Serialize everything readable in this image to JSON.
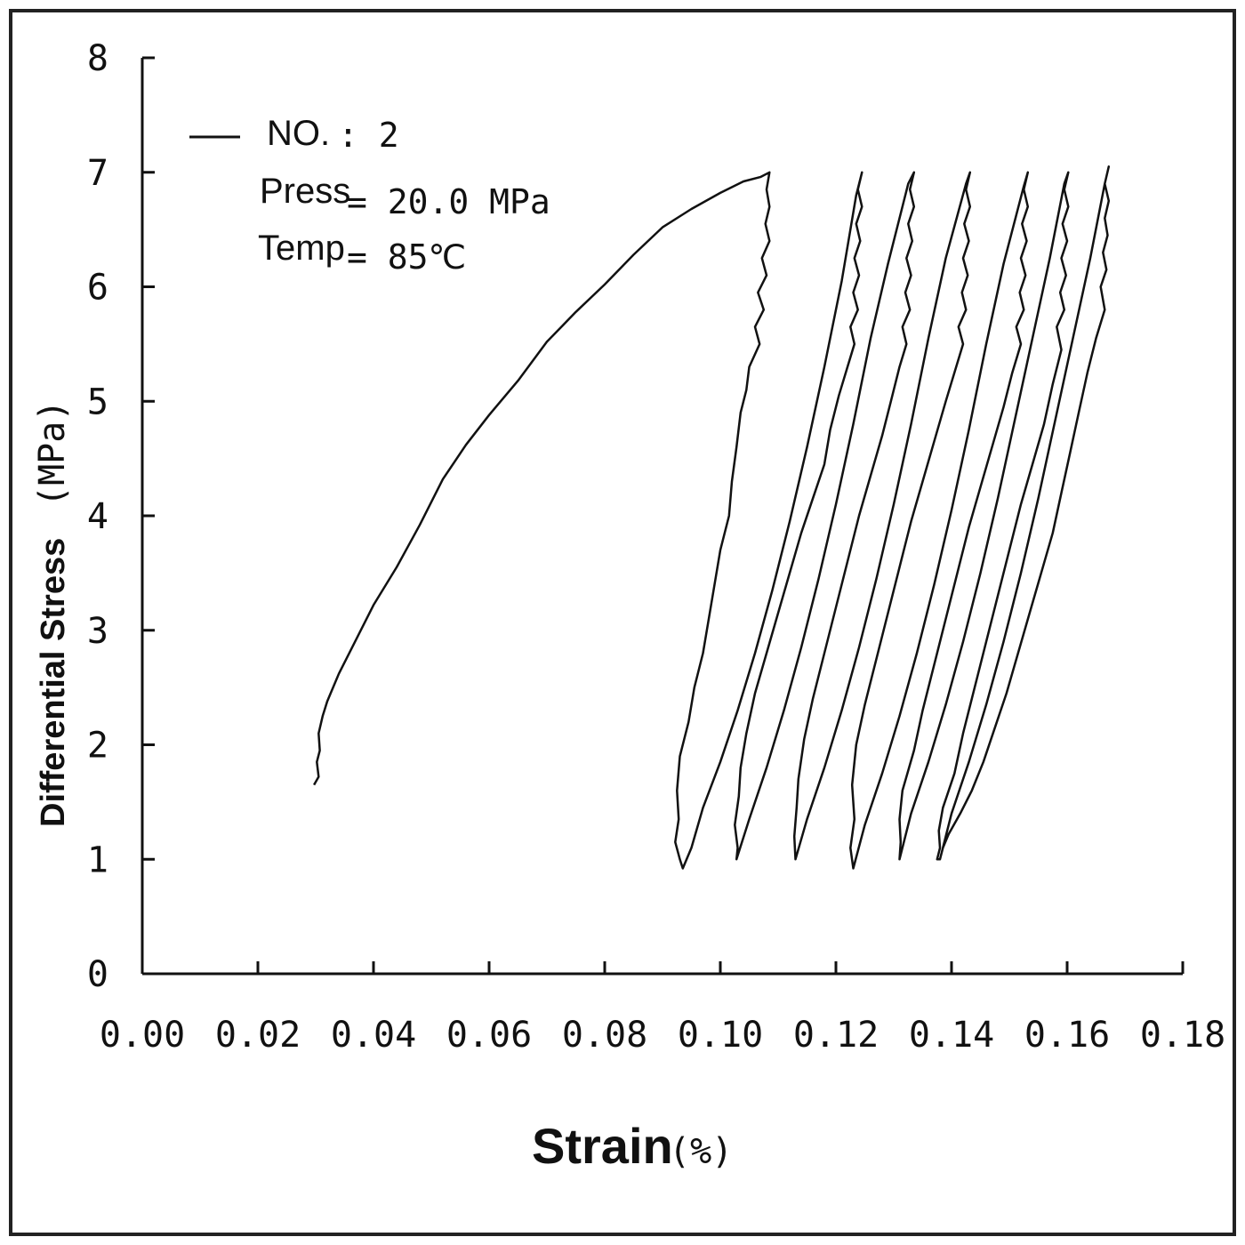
{
  "chart_data": {
    "type": "line",
    "title": "",
    "xlabel": "Strain",
    "xlabel_unit": "(%)",
    "ylabel": "Differential Stress",
    "ylabel_unit": "(MPa)",
    "xlim": [
      0,
      0.18
    ],
    "ylim": [
      0,
      8
    ],
    "x_ticks": [
      "0.00",
      "0.02",
      "0.04",
      "0.06",
      "0.08",
      "0.10",
      "0.12",
      "0.14",
      "0.16",
      "0.18"
    ],
    "y_ticks": [
      "0",
      "1",
      "2",
      "3",
      "4",
      "5",
      "6",
      "7",
      "8"
    ],
    "grid": false,
    "legend": {
      "position": "top-left",
      "entries": [
        {
          "key": "NO.",
          "value": ": 2"
        },
        {
          "key": "Press",
          "value": "= 20.0 MPa"
        },
        {
          "key": "Temp",
          "value": "= 85℃"
        }
      ]
    },
    "series": [
      {
        "x": [
          0.0297,
          0.0305,
          0.0302,
          0.0307,
          0.0305,
          0.0312,
          0.032,
          0.034,
          0.037,
          0.04,
          0.044,
          0.048,
          0.052,
          0.056,
          0.06,
          0.065,
          0.07,
          0.075,
          0.08,
          0.085,
          0.09,
          0.095,
          0.1,
          0.104,
          0.107,
          0.1085,
          0.108,
          0.1085,
          0.1078,
          0.1085,
          0.1072,
          0.108,
          0.1065,
          0.1075,
          0.106,
          0.1068,
          0.105,
          0.1045,
          0.1035,
          0.1028,
          0.102,
          0.1015,
          0.1,
          0.099,
          0.098,
          0.097,
          0.0955,
          0.0945,
          0.093,
          0.0925,
          0.0928,
          0.0922,
          0.093,
          0.0935,
          0.095,
          0.097,
          0.1,
          0.103,
          0.106,
          0.109,
          0.112,
          0.115,
          0.118,
          0.121,
          0.1235,
          0.1245,
          0.1238,
          0.1245,
          0.1235,
          0.1242,
          0.1232,
          0.124,
          0.123,
          0.1238,
          0.1225,
          0.1232,
          0.122,
          0.1205,
          0.119,
          0.118,
          0.116,
          0.114,
          0.112,
          0.11,
          0.108,
          0.106,
          0.1045,
          0.1035,
          0.1032,
          0.1025,
          0.103,
          0.1028,
          0.105,
          0.108,
          0.111,
          0.114,
          0.117,
          0.12,
          0.123,
          0.126,
          0.129,
          0.1325,
          0.1335,
          0.1328,
          0.1335,
          0.1325,
          0.1332,
          0.1322,
          0.133,
          0.132,
          0.1328,
          0.1315,
          0.1322,
          0.131,
          0.1295,
          0.128,
          0.126,
          0.124,
          0.122,
          0.12,
          0.118,
          0.116,
          0.1145,
          0.1135,
          0.1132,
          0.1128,
          0.113,
          0.115,
          0.118,
          0.121,
          0.124,
          0.127,
          0.13,
          0.133,
          0.136,
          0.139,
          0.1425,
          0.1432,
          0.1425,
          0.1432,
          0.1422,
          0.143,
          0.142,
          0.1428,
          0.1418,
          0.1425,
          0.1412,
          0.142,
          0.1408,
          0.139,
          0.137,
          0.135,
          0.133,
          0.131,
          0.129,
          0.127,
          0.125,
          0.1235,
          0.1228,
          0.1232,
          0.1225,
          0.123,
          0.125,
          0.128,
          0.131,
          0.134,
          0.137,
          0.14,
          0.143,
          0.146,
          0.149,
          0.1525,
          0.1532,
          0.1525,
          0.1532,
          0.1522,
          0.153,
          0.152,
          0.1528,
          0.1518,
          0.1525,
          0.1512,
          0.152,
          0.1505,
          0.149,
          0.147,
          0.145,
          0.143,
          0.141,
          0.139,
          0.137,
          0.135,
          0.1335,
          0.1315,
          0.131,
          0.1312,
          0.131,
          0.133,
          0.136,
          0.139,
          0.142,
          0.145,
          0.148,
          0.151,
          0.154,
          0.157,
          0.1595,
          0.1602,
          0.1595,
          0.1602,
          0.1592,
          0.16,
          0.159,
          0.1598,
          0.1588,
          0.1595,
          0.1582,
          0.159,
          0.1575,
          0.156,
          0.154,
          0.152,
          0.15,
          0.148,
          0.146,
          0.144,
          0.142,
          0.1405,
          0.1385,
          0.1378,
          0.138,
          0.1375,
          0.138,
          0.14,
          0.143,
          0.146,
          0.149,
          0.152,
          0.155,
          0.158,
          0.161,
          0.164,
          0.1665,
          0.1672,
          0.1665,
          0.1672,
          0.1665,
          0.167,
          0.1662,
          0.1668,
          0.1658,
          0.1665,
          0.165,
          0.1635,
          0.162,
          0.1605,
          0.159,
          0.1575,
          0.1555,
          0.1535,
          0.1515,
          0.1495,
          0.1475,
          0.1455,
          0.1435,
          0.1415,
          0.1395,
          0.1385,
          0.138
        ],
        "y": [
          1.65,
          1.72,
          1.85,
          1.95,
          2.1,
          2.25,
          2.38,
          2.62,
          2.92,
          3.22,
          3.55,
          3.92,
          4.32,
          4.62,
          4.88,
          5.18,
          5.52,
          5.78,
          6.02,
          6.28,
          6.52,
          6.68,
          6.82,
          6.92,
          6.96,
          7.0,
          6.85,
          6.7,
          6.55,
          6.4,
          6.25,
          6.1,
          5.95,
          5.8,
          5.65,
          5.5,
          5.3,
          5.1,
          4.9,
          4.6,
          4.3,
          4.0,
          3.7,
          3.4,
          3.1,
          2.8,
          2.5,
          2.2,
          1.9,
          1.6,
          1.35,
          1.15,
          1.0,
          0.92,
          1.1,
          1.45,
          1.85,
          2.3,
          2.8,
          3.35,
          3.95,
          4.6,
          5.3,
          6.05,
          6.8,
          7.0,
          6.85,
          6.7,
          6.55,
          6.4,
          6.25,
          6.1,
          5.95,
          5.8,
          5.65,
          5.5,
          5.3,
          5.05,
          4.75,
          4.45,
          4.15,
          3.85,
          3.5,
          3.15,
          2.8,
          2.45,
          2.1,
          1.8,
          1.55,
          1.3,
          1.1,
          1.0,
          1.35,
          1.8,
          2.3,
          2.85,
          3.45,
          4.1,
          4.8,
          5.55,
          6.2,
          6.9,
          7.0,
          6.85,
          6.7,
          6.55,
          6.4,
          6.25,
          6.1,
          5.95,
          5.8,
          5.65,
          5.5,
          5.3,
          5.0,
          4.7,
          4.35,
          4.0,
          3.6,
          3.2,
          2.8,
          2.4,
          2.05,
          1.7,
          1.45,
          1.2,
          1.0,
          1.35,
          1.8,
          2.3,
          2.85,
          3.45,
          4.1,
          4.8,
          5.55,
          6.25,
          6.9,
          7.0,
          6.85,
          6.7,
          6.55,
          6.4,
          6.25,
          6.1,
          5.95,
          5.8,
          5.65,
          5.5,
          5.3,
          5.0,
          4.65,
          4.3,
          3.95,
          3.55,
          3.15,
          2.75,
          2.35,
          2.0,
          1.65,
          1.35,
          1.1,
          0.92,
          1.3,
          1.75,
          2.25,
          2.8,
          3.4,
          4.05,
          4.75,
          5.5,
          6.2,
          6.88,
          7.0,
          6.85,
          6.7,
          6.55,
          6.4,
          6.25,
          6.1,
          5.95,
          5.8,
          5.65,
          5.5,
          5.25,
          4.95,
          4.6,
          4.25,
          3.9,
          3.5,
          3.1,
          2.7,
          2.3,
          1.95,
          1.6,
          1.35,
          1.15,
          1.0,
          1.4,
          1.85,
          2.35,
          2.9,
          3.5,
          4.15,
          4.85,
          5.55,
          6.25,
          6.9,
          7.0,
          6.85,
          6.7,
          6.55,
          6.4,
          6.25,
          6.1,
          5.95,
          5.8,
          5.65,
          5.45,
          5.15,
          4.8,
          4.45,
          4.1,
          3.7,
          3.3,
          2.9,
          2.5,
          2.1,
          1.75,
          1.45,
          1.25,
          1.1,
          1.0,
          1.0,
          1.4,
          1.85,
          2.35,
          2.9,
          3.5,
          4.15,
          4.85,
          5.55,
          6.25,
          6.9,
          7.05,
          6.9,
          6.75,
          6.6,
          6.45,
          6.3,
          6.15,
          6.0,
          5.8,
          5.55,
          5.25,
          4.9,
          4.55,
          4.2,
          3.85,
          3.5,
          3.15,
          2.8,
          2.45,
          2.15,
          1.85,
          1.6,
          1.4,
          1.22,
          1.1,
          1.0
        ]
      }
    ]
  }
}
